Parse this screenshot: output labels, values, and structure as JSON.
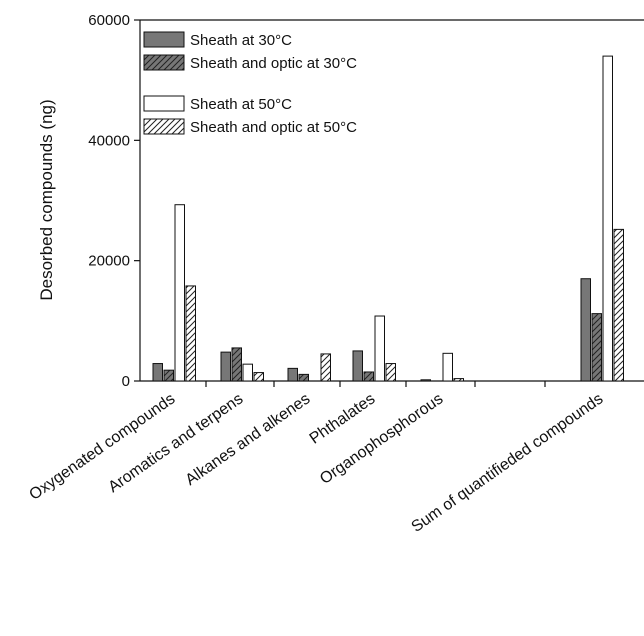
{
  "chart_data": {
    "type": "bar",
    "title": "",
    "xlabel": "",
    "ylabel": "Desorbed compounds (ng)",
    "ylim": [
      0,
      60000
    ],
    "yticks": [
      0,
      20000,
      40000,
      60000
    ],
    "grid": false,
    "legend_position": "top-left",
    "categories": [
      "Oxygenated compounds",
      "Aromatics and terpens",
      "Alkanes and alkenes",
      "Phthalates",
      "Organophosphorous",
      "",
      "Sum of quantifieded compounds"
    ],
    "series": [
      {
        "name": "Sheath at 30°C",
        "fill": "#777777",
        "hatch": false,
        "values": [
          2900,
          4800,
          2100,
          5000,
          200,
          0,
          17000
        ]
      },
      {
        "name": "Sheath and optic at 30°C",
        "fill": "#777777",
        "hatch": true,
        "values": [
          1800,
          5500,
          1100,
          1500,
          0,
          0,
          11200
        ]
      },
      {
        "name": "Sheath at 50°C",
        "fill": "#ffffff",
        "hatch": false,
        "values": [
          29300,
          2800,
          0,
          10800,
          4600,
          0,
          54000
        ]
      },
      {
        "name": "Sheath and optic at 50°C",
        "fill": "#ffffff",
        "hatch": true,
        "values": [
          15800,
          1400,
          4500,
          2900,
          400,
          0,
          25200
        ]
      }
    ]
  }
}
